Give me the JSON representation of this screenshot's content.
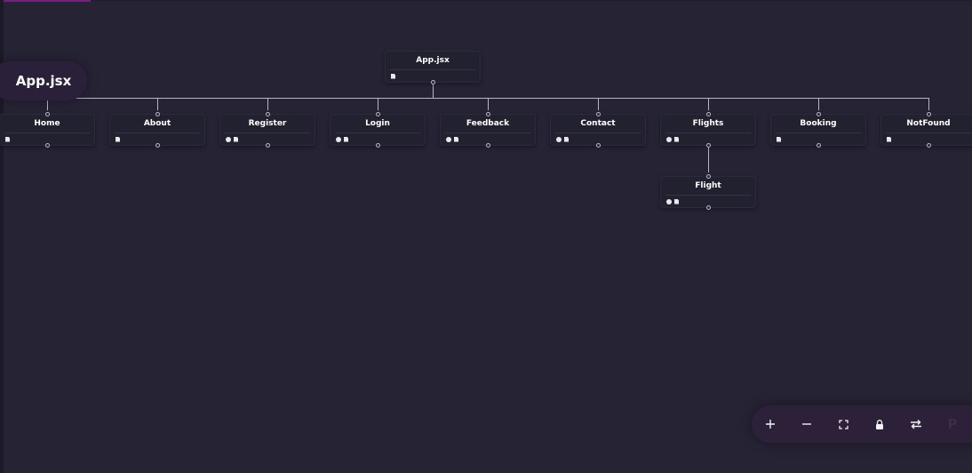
{
  "file_badge": {
    "label": "App.jsx"
  },
  "tree": {
    "root": {
      "label": "App.jsx",
      "icons": [
        "file"
      ]
    },
    "children": [
      {
        "label": "Home",
        "icons": [
          "file"
        ]
      },
      {
        "label": "About",
        "icons": [
          "file"
        ]
      },
      {
        "label": "Register",
        "icons": [
          "info",
          "file"
        ]
      },
      {
        "label": "Login",
        "icons": [
          "info",
          "file"
        ]
      },
      {
        "label": "Feedback",
        "icons": [
          "info",
          "file"
        ]
      },
      {
        "label": "Contact",
        "icons": [
          "info",
          "file"
        ]
      },
      {
        "label": "Flights",
        "icons": [
          "info",
          "file"
        ],
        "children": [
          {
            "label": "Flight",
            "icons": [
              "info",
              "file"
            ]
          }
        ]
      },
      {
        "label": "Booking",
        "icons": [
          "file"
        ]
      },
      {
        "label": "NotFound",
        "icons": [
          "file"
        ]
      }
    ]
  },
  "controls": [
    {
      "name": "zoom-in",
      "icon": "plus-icon"
    },
    {
      "name": "zoom-out",
      "icon": "minus-icon"
    },
    {
      "name": "fit-view",
      "icon": "fit-view-icon"
    },
    {
      "name": "lock",
      "icon": "lock-icon"
    },
    {
      "name": "swap-direction",
      "icon": "swap-icon"
    },
    {
      "name": "p-button",
      "label": "P"
    }
  ],
  "colors": {
    "background": "#262335",
    "node_background": "#22212f",
    "edge": "#b8b6c6",
    "accent": "#7a1b86",
    "badge_background": "#2b2039"
  }
}
